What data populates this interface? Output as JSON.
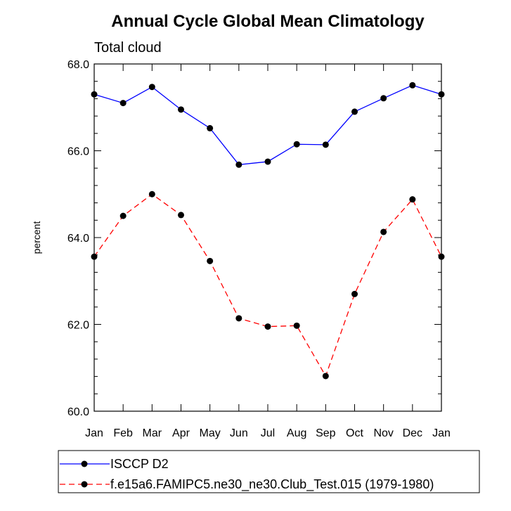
{
  "chart_data": {
    "type": "line",
    "title": "Annual Cycle Global Mean Climatology",
    "subtitle": "Total cloud",
    "xlabel": "",
    "ylabel": "percent",
    "ylim": [
      60.0,
      68.0
    ],
    "yticks": [
      "60.0",
      "62.0",
      "64.0",
      "66.0",
      "68.0"
    ],
    "categories": [
      "Jan",
      "Feb",
      "Mar",
      "Apr",
      "May",
      "Jun",
      "Jul",
      "Aug",
      "Sep",
      "Oct",
      "Nov",
      "Dec",
      "Jan"
    ],
    "grid": false,
    "legend_position": "bottom-left",
    "series": [
      {
        "name": "ISCCP D2",
        "color": "#0000ff",
        "line_style": "solid",
        "marker": "filled-circle",
        "values": [
          67.3,
          67.1,
          67.47,
          66.95,
          66.52,
          65.68,
          65.75,
          66.15,
          66.14,
          66.9,
          67.21,
          67.51,
          67.3
        ]
      },
      {
        "name": "f.e15a6.FAMIPC5.ne30_ne30.Club_Test.015 (1979-1980)",
        "color": "#ff0000",
        "line_style": "dashed",
        "marker": "filled-circle",
        "values": [
          63.56,
          64.5,
          65.0,
          64.52,
          63.46,
          62.14,
          61.95,
          61.97,
          60.81,
          62.7,
          64.13,
          64.88,
          63.56
        ]
      }
    ]
  }
}
